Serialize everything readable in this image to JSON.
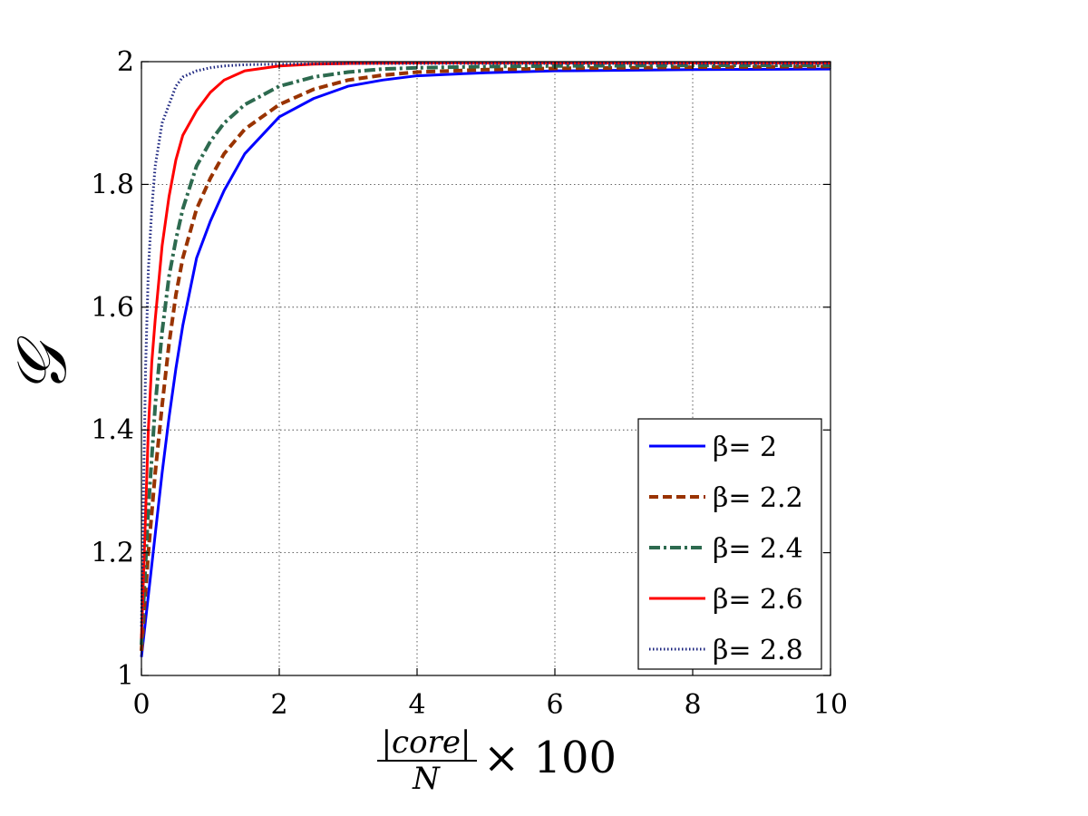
{
  "chart_data": {
    "type": "line",
    "title": "",
    "xlabel": {
      "numerator": "|core|",
      "denominator": "N",
      "suffix": "× 100"
    },
    "ylabel": "𝒢",
    "xlim": [
      0,
      10
    ],
    "ylim": [
      1,
      2
    ],
    "x_ticks": [
      "0",
      "2",
      "4",
      "6",
      "8",
      "10"
    ],
    "y_ticks": [
      "1",
      "1.2",
      "1.4",
      "1.6",
      "1.8",
      "2"
    ],
    "grid": true,
    "legend_position": "bottom-right",
    "series": [
      {
        "name": "β= 2",
        "color": "#0000ff",
        "style": "solid",
        "x": [
          0,
          0.05,
          0.1,
          0.2,
          0.3,
          0.4,
          0.5,
          0.6,
          0.8,
          1.0,
          1.2,
          1.5,
          2.0,
          2.5,
          3.0,
          3.5,
          4.0,
          5.0,
          6.0,
          7.0,
          8.0,
          10.0
        ],
        "y": [
          1.03,
          1.08,
          1.13,
          1.23,
          1.33,
          1.42,
          1.5,
          1.57,
          1.68,
          1.74,
          1.79,
          1.85,
          1.91,
          1.94,
          1.96,
          1.97,
          1.977,
          1.982,
          1.985,
          1.986,
          1.987,
          1.988
        ]
      },
      {
        "name": "β= 2.2",
        "color": "#993300",
        "style": "dashed",
        "x": [
          0,
          0.05,
          0.1,
          0.2,
          0.3,
          0.4,
          0.5,
          0.6,
          0.8,
          1.0,
          1.2,
          1.5,
          2.0,
          2.5,
          3.0,
          3.5,
          4.0,
          5.0,
          6.0,
          7.0,
          8.0,
          10.0
        ],
        "y": [
          1.04,
          1.12,
          1.2,
          1.33,
          1.44,
          1.54,
          1.62,
          1.68,
          1.76,
          1.81,
          1.85,
          1.89,
          1.93,
          1.955,
          1.97,
          1.978,
          1.983,
          1.987,
          1.989,
          1.99,
          1.991,
          1.992
        ]
      },
      {
        "name": "β= 2.4",
        "color": "#2d6a4f",
        "style": "dashdot",
        "x": [
          0,
          0.05,
          0.1,
          0.2,
          0.3,
          0.4,
          0.5,
          0.6,
          0.8,
          1.0,
          1.2,
          1.5,
          2.0,
          2.5,
          3.0,
          3.5,
          4.0,
          5.0,
          6.0,
          8.0,
          10.0
        ],
        "y": [
          1.05,
          1.16,
          1.27,
          1.44,
          1.56,
          1.65,
          1.71,
          1.76,
          1.83,
          1.87,
          1.9,
          1.93,
          1.96,
          1.975,
          1.983,
          1.988,
          1.99,
          1.992,
          1.993,
          1.994,
          1.994
        ]
      },
      {
        "name": "β= 2.6",
        "color": "#ff0000",
        "style": "solid",
        "x": [
          0,
          0.05,
          0.1,
          0.15,
          0.2,
          0.3,
          0.4,
          0.5,
          0.6,
          0.8,
          1.0,
          1.2,
          1.5,
          2.0,
          2.5,
          3.0,
          4.0,
          5.0,
          6.0,
          8.0,
          10.0
        ],
        "y": [
          1.06,
          1.23,
          1.4,
          1.51,
          1.58,
          1.7,
          1.78,
          1.84,
          1.88,
          1.92,
          1.95,
          1.97,
          1.985,
          1.993,
          1.996,
          1.997,
          1.998,
          1.998,
          1.998,
          1.998,
          1.998
        ]
      },
      {
        "name": "β= 2.8",
        "color": "#1a237e",
        "style": "dotted",
        "x": [
          0,
          0.03,
          0.06,
          0.1,
          0.15,
          0.2,
          0.3,
          0.4,
          0.5,
          0.6,
          0.8,
          1.0,
          1.2,
          1.5,
          2.0,
          3.0,
          4.0,
          6.0,
          8.0,
          10.0
        ],
        "y": [
          1.08,
          1.3,
          1.5,
          1.66,
          1.76,
          1.83,
          1.9,
          1.93,
          1.96,
          1.975,
          1.985,
          1.99,
          1.993,
          1.995,
          1.996,
          1.997,
          1.997,
          1.997,
          1.997,
          1.997
        ]
      }
    ]
  }
}
